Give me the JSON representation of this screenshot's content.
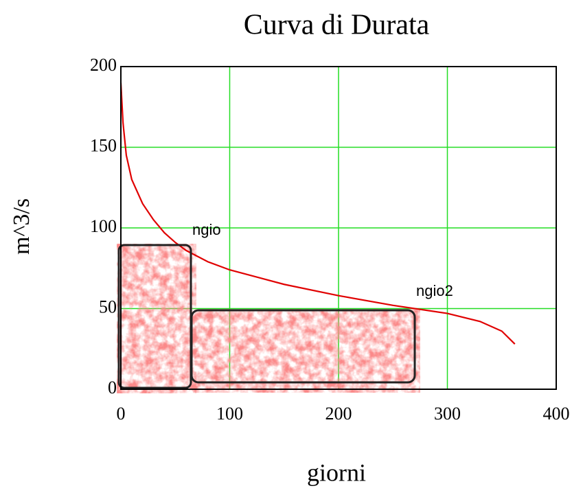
{
  "chart_data": {
    "type": "line",
    "title": "Curva di Durata",
    "x_label": "giorni",
    "y_label": "m^3/s",
    "x": [
      0,
      2,
      5,
      10,
      20,
      30,
      40,
      50,
      60,
      80,
      100,
      150,
      200,
      250,
      300,
      330,
      350,
      362
    ],
    "values": [
      190,
      165,
      145,
      130,
      115,
      105,
      97,
      91,
      86,
      79,
      74,
      65,
      58,
      52,
      47,
      42,
      36,
      28
    ],
    "color": "#e00000",
    "xlim": [
      0,
      400
    ],
    "xticks": [
      0,
      100,
      200,
      300,
      400
    ],
    "ylim": [
      0,
      200
    ],
    "yticks": [
      0,
      50,
      100,
      150,
      200
    ],
    "grid": true,
    "grid_color": "#22dd22",
    "annotations": [
      "ngio",
      "ngio2"
    ]
  }
}
